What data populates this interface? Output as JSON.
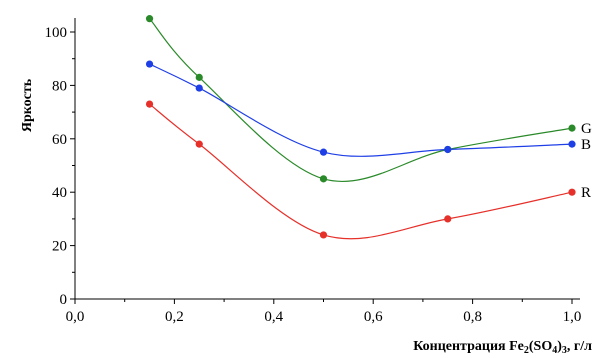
{
  "chart_data": {
    "type": "line",
    "xlabel": "Концентрация Fe2(SO4)3, г/л",
    "xlabel_parts": [
      "Концентрация Fe",
      "2",
      "(SO",
      "4",
      ")",
      "3",
      ", г/л"
    ],
    "ylabel": "Яркость",
    "xlim": [
      0.0,
      1.0
    ],
    "ylim": [
      0,
      100
    ],
    "x_ticks": [
      "0,0",
      "0,2",
      "0,4",
      "0,6",
      "0,8",
      "1,0"
    ],
    "x_tick_values": [
      0.0,
      0.2,
      0.4,
      0.6,
      0.8,
      1.0
    ],
    "y_ticks": [
      "0",
      "20",
      "40",
      "60",
      "80",
      "100"
    ],
    "y_tick_values": [
      0,
      20,
      40,
      60,
      80,
      100
    ],
    "grid": false,
    "smooth": true,
    "series": [
      {
        "name": "G",
        "color": "#2a8a2a",
        "x": [
          0.15,
          0.25,
          0.5,
          0.75,
          1.0
        ],
        "y": [
          105,
          83,
          45,
          56,
          64
        ]
      },
      {
        "name": "B",
        "color": "#1f3fe6",
        "x": [
          0.15,
          0.25,
          0.5,
          0.75,
          1.0
        ],
        "y": [
          88,
          79,
          55,
          56,
          58
        ]
      },
      {
        "name": "R",
        "color": "#e6302a",
        "x": [
          0.15,
          0.25,
          0.5,
          0.75,
          1.0
        ],
        "y": [
          73,
          58,
          24,
          30,
          40
        ]
      }
    ]
  }
}
